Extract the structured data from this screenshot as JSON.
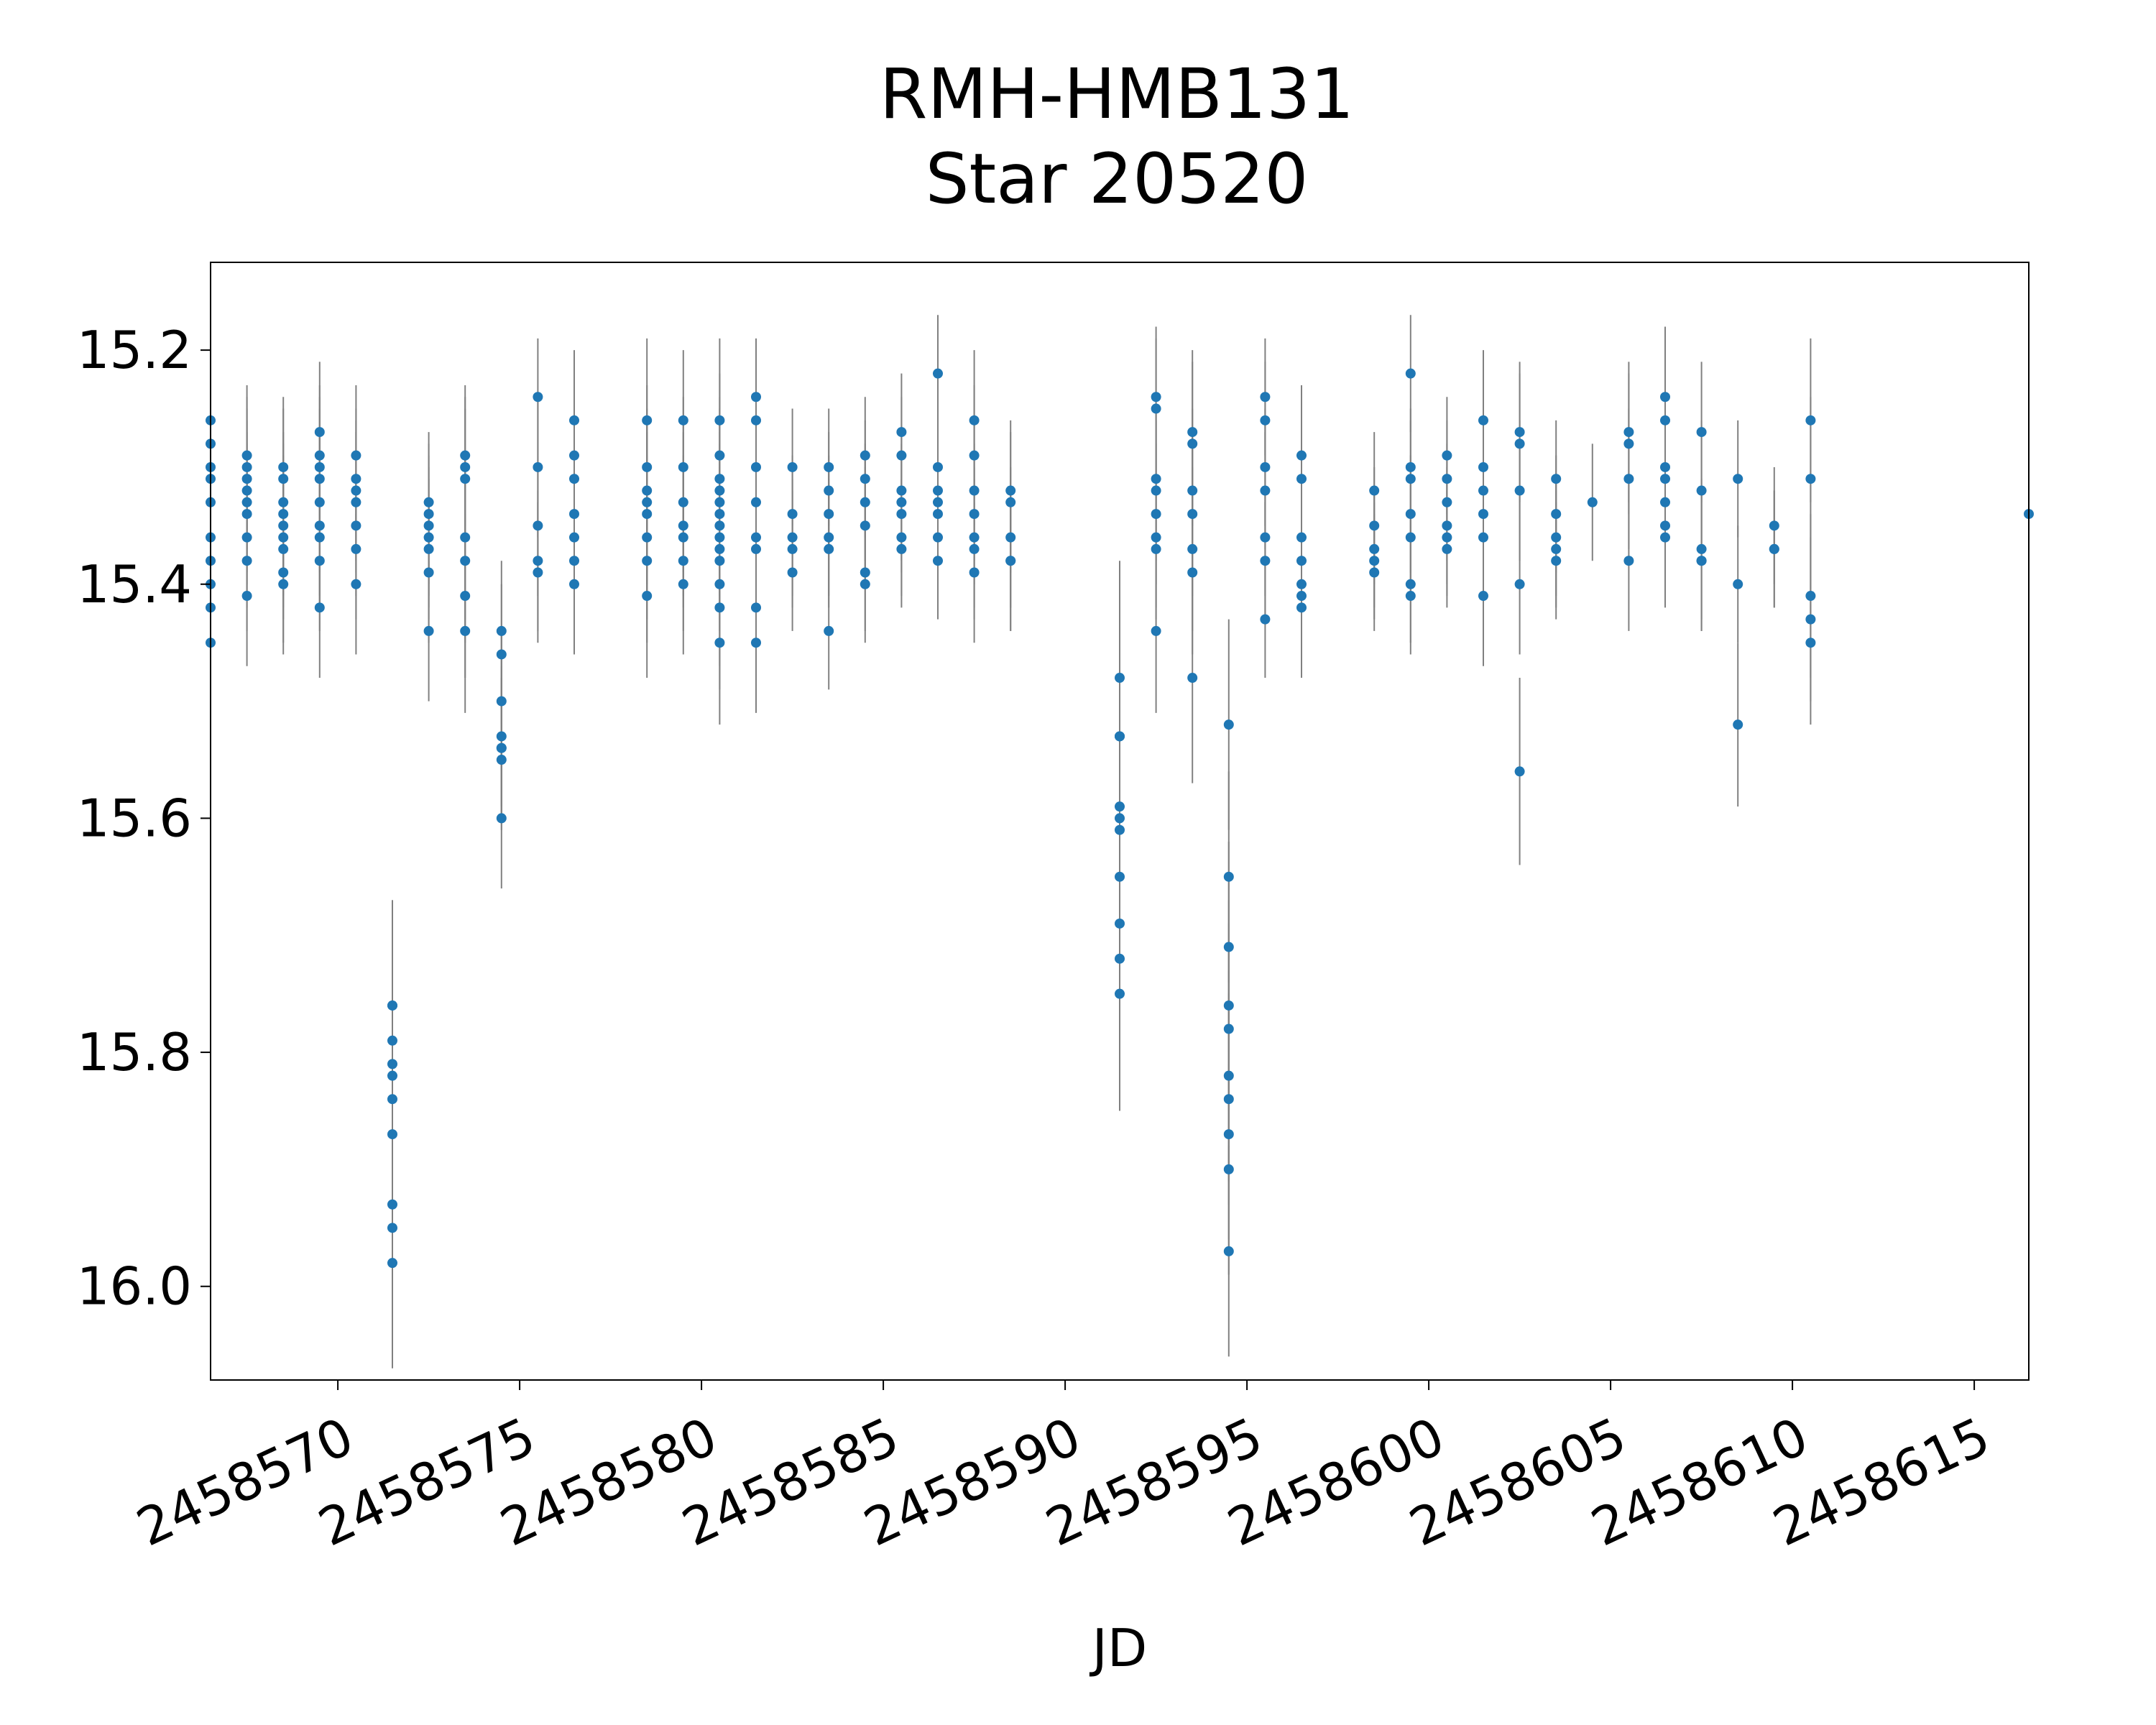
{
  "chart_data": {
    "type": "scatter",
    "title_lines": [
      "RMH-HMB131",
      "Star 20520"
    ],
    "xlabel": "JD",
    "ylabel": "",
    "xlim": [
      2458566.5,
      2458616.5
    ],
    "ylim": [
      16.08,
      15.125
    ],
    "y_inverted": true,
    "x_ticks": [
      2458570,
      2458575,
      2458580,
      2458585,
      2458590,
      2458595,
      2458600,
      2458605,
      2458610,
      2458615
    ],
    "x_tick_labels": [
      "2458570",
      "2458575",
      "2458580",
      "2458585",
      "2458590",
      "2458595",
      "2458600",
      "2458605",
      "2458610",
      "2458615"
    ],
    "y_ticks": [
      15.2,
      15.4,
      15.6,
      15.8,
      16.0
    ],
    "y_tick_labels": [
      "15.2",
      "15.4",
      "15.6",
      "15.8",
      "16.0"
    ],
    "grid": false,
    "legend": "none",
    "colors": {
      "point": "#1f77b4",
      "errorbar": "#808080"
    },
    "series": [
      {
        "x": [
          2458566.5,
          2458566.5,
          2458566.5,
          2458566.5,
          2458566.5,
          2458566.5,
          2458566.5,
          2458566.5,
          2458566.5,
          2458566.5,
          2458567.5,
          2458567.5,
          2458567.5,
          2458567.5,
          2458567.5,
          2458567.5,
          2458567.5,
          2458567.5,
          2458567.5,
          2458568.5,
          2458568.5,
          2458568.5,
          2458568.5,
          2458568.5,
          2458568.5,
          2458568.5,
          2458568.5,
          2458568.5,
          2458569.5,
          2458569.5,
          2458569.5,
          2458569.5,
          2458569.5,
          2458569.5,
          2458569.5,
          2458569.5,
          2458569.5,
          2458570.5,
          2458570.5,
          2458570.5,
          2458570.5,
          2458570.5,
          2458570.5,
          2458570.5,
          2458571.5,
          2458571.5,
          2458571.5,
          2458571.5,
          2458571.5,
          2458571.5,
          2458571.5,
          2458571.5,
          2458571.5,
          2458571.5,
          2458572.5,
          2458572.5,
          2458572.5,
          2458572.5,
          2458572.5,
          2458572.5,
          2458572.5,
          2458573.5,
          2458573.5,
          2458573.5,
          2458573.5,
          2458573.5,
          2458573.5,
          2458573.5,
          2458574.5,
          2458574.5,
          2458574.5,
          2458574.5,
          2458574.5,
          2458574.5,
          2458574.5,
          2458574.5,
          2458575.5,
          2458575.5,
          2458575.5,
          2458575.5,
          2458575.5,
          2458576.5,
          2458576.5,
          2458576.5,
          2458576.5,
          2458576.5,
          2458576.5,
          2458576.5,
          2458578.5,
          2458578.5,
          2458578.5,
          2458578.5,
          2458578.5,
          2458578.5,
          2458578.5,
          2458578.5,
          2458579.5,
          2458579.5,
          2458579.5,
          2458579.5,
          2458579.5,
          2458579.5,
          2458579.5,
          2458580.5,
          2458580.5,
          2458580.5,
          2458580.5,
          2458580.5,
          2458580.5,
          2458580.5,
          2458580.5,
          2458580.5,
          2458580.5,
          2458580.5,
          2458580.5,
          2458580.5,
          2458581.5,
          2458581.5,
          2458581.5,
          2458581.5,
          2458581.5,
          2458581.5,
          2458581.5,
          2458581.5,
          2458582.5,
          2458582.5,
          2458582.5,
          2458582.5,
          2458582.5,
          2458583.5,
          2458583.5,
          2458583.5,
          2458583.5,
          2458583.5,
          2458583.5,
          2458584.5,
          2458584.5,
          2458584.5,
          2458584.5,
          2458584.5,
          2458584.5,
          2458585.5,
          2458585.5,
          2458585.5,
          2458585.5,
          2458585.5,
          2458585.5,
          2458585.5,
          2458586.5,
          2458586.5,
          2458586.5,
          2458586.5,
          2458586.5,
          2458586.5,
          2458586.5,
          2458587.5,
          2458587.5,
          2458587.5,
          2458587.5,
          2458587.5,
          2458587.5,
          2458587.5,
          2458588.5,
          2458588.5,
          2458588.5,
          2458588.5,
          2458588.5,
          2458591.5,
          2458591.5,
          2458591.5,
          2458591.5,
          2458591.5,
          2458591.5,
          2458591.5,
          2458591.5,
          2458591.5,
          2458591.5,
          2458592.5,
          2458592.5,
          2458592.5,
          2458592.5,
          2458592.5,
          2458592.5,
          2458592.5,
          2458592.5,
          2458593.5,
          2458593.5,
          2458593.5,
          2458593.5,
          2458593.5,
          2458593.5,
          2458593.5,
          2458594.5,
          2458594.5,
          2458594.5,
          2458594.5,
          2458594.5,
          2458594.5,
          2458594.5,
          2458594.5,
          2458594.5,
          2458594.5,
          2458595.5,
          2458595.5,
          2458595.5,
          2458595.5,
          2458595.5,
          2458595.5,
          2458595.5,
          2458596.5,
          2458596.5,
          2458596.5,
          2458596.5,
          2458596.5,
          2458596.5,
          2458596.5,
          2458598.5,
          2458598.5,
          2458598.5,
          2458598.5,
          2458598.5,
          2458599.5,
          2458599.5,
          2458599.5,
          2458599.5,
          2458599.5,
          2458599.5,
          2458599.5,
          2458600.5,
          2458600.5,
          2458600.5,
          2458600.5,
          2458600.5,
          2458600.5,
          2458601.5,
          2458601.5,
          2458601.5,
          2458601.5,
          2458601.5,
          2458601.5,
          2458602.5,
          2458602.5,
          2458602.5,
          2458602.5,
          2458602.5,
          2458603.5,
          2458603.5,
          2458603.5,
          2458603.5,
          2458603.5,
          2458604.5,
          2458605.5,
          2458605.5,
          2458605.5,
          2458605.5,
          2458606.5,
          2458606.5,
          2458606.5,
          2458606.5,
          2458606.5,
          2458606.5,
          2458606.5,
          2458607.5,
          2458607.5,
          2458607.5,
          2458607.5,
          2458607.5,
          2458608.5,
          2458608.5,
          2458608.5,
          2458609.5,
          2458609.5,
          2458609.5,
          2458610.5,
          2458610.5,
          2458610.5,
          2458610.5,
          2458610.5,
          2458616.5
        ],
        "y": [
          15.26,
          15.28,
          15.31,
          15.33,
          15.36,
          15.38,
          15.4,
          15.42,
          15.45,
          15.3,
          15.29,
          15.31,
          15.33,
          15.34,
          15.36,
          15.38,
          15.41,
          15.3,
          15.32,
          15.3,
          15.31,
          15.34,
          15.35,
          15.37,
          15.39,
          15.4,
          15.36,
          15.33,
          15.27,
          15.29,
          15.31,
          15.33,
          15.36,
          15.38,
          15.42,
          15.3,
          15.35,
          15.29,
          15.31,
          15.33,
          15.35,
          15.37,
          15.4,
          15.32,
          15.76,
          15.79,
          15.82,
          15.84,
          15.87,
          15.93,
          15.95,
          15.98,
          15.76,
          15.81,
          15.33,
          15.35,
          15.37,
          15.39,
          15.44,
          15.36,
          15.34,
          15.29,
          15.31,
          15.36,
          15.38,
          15.41,
          15.44,
          15.3,
          15.44,
          15.46,
          15.5,
          15.53,
          15.54,
          15.55,
          15.6,
          15.54,
          15.24,
          15.3,
          15.35,
          15.38,
          15.39,
          15.26,
          15.29,
          15.31,
          15.34,
          15.36,
          15.38,
          15.4,
          15.26,
          15.3,
          15.32,
          15.34,
          15.36,
          15.38,
          15.41,
          15.33,
          15.26,
          15.3,
          15.33,
          15.36,
          15.38,
          15.4,
          15.35,
          15.26,
          15.29,
          15.31,
          15.33,
          15.34,
          15.36,
          15.37,
          15.38,
          15.4,
          15.42,
          15.45,
          15.35,
          15.32,
          15.24,
          15.26,
          15.3,
          15.33,
          15.36,
          15.37,
          15.42,
          15.45,
          15.3,
          15.34,
          15.36,
          15.37,
          15.39,
          15.3,
          15.32,
          15.34,
          15.36,
          15.37,
          15.44,
          15.29,
          15.31,
          15.33,
          15.35,
          15.4,
          15.39,
          15.27,
          15.29,
          15.32,
          15.33,
          15.34,
          15.36,
          15.37,
          15.22,
          15.3,
          15.32,
          15.33,
          15.34,
          15.36,
          15.38,
          15.26,
          15.29,
          15.32,
          15.34,
          15.36,
          15.37,
          15.39,
          15.32,
          15.33,
          15.36,
          15.38,
          15.38,
          15.48,
          15.53,
          15.53,
          15.59,
          15.6,
          15.61,
          15.65,
          15.69,
          15.72,
          15.75,
          15.24,
          15.25,
          15.31,
          15.32,
          15.34,
          15.36,
          15.37,
          15.44,
          15.27,
          15.28,
          15.32,
          15.34,
          15.37,
          15.39,
          15.48,
          15.52,
          15.65,
          15.71,
          15.76,
          15.78,
          15.82,
          15.84,
          15.87,
          15.9,
          15.97,
          15.24,
          15.26,
          15.3,
          15.32,
          15.36,
          15.38,
          15.43,
          15.29,
          15.31,
          15.36,
          15.38,
          15.4,
          15.41,
          15.42,
          15.32,
          15.35,
          15.37,
          15.38,
          15.39,
          15.22,
          15.3,
          15.31,
          15.34,
          15.36,
          15.4,
          15.41,
          15.29,
          15.31,
          15.33,
          15.35,
          15.36,
          15.37,
          15.26,
          15.3,
          15.32,
          15.34,
          15.36,
          15.41,
          15.27,
          15.28,
          15.32,
          15.4,
          15.56,
          15.31,
          15.34,
          15.36,
          15.37,
          15.38,
          15.33,
          15.27,
          15.28,
          15.31,
          15.38,
          15.24,
          15.26,
          15.3,
          15.31,
          15.33,
          15.35,
          15.36,
          15.27,
          15.32,
          15.37,
          15.38,
          15.38,
          15.31,
          15.4,
          15.52,
          15.35,
          15.37,
          15.37,
          15.26,
          15.31,
          15.41,
          15.43,
          15.45,
          15.34
        ],
        "yerr": [
          0.07,
          0.07,
          0.06,
          0.07,
          0.07,
          0.06,
          0.07,
          0.07,
          0.07,
          0.07,
          0.06,
          0.06,
          0.06,
          0.06,
          0.06,
          0.06,
          0.06,
          0.06,
          0.06,
          0.06,
          0.06,
          0.06,
          0.06,
          0.06,
          0.06,
          0.06,
          0.06,
          0.06,
          0.06,
          0.06,
          0.06,
          0.06,
          0.06,
          0.06,
          0.06,
          0.06,
          0.06,
          0.06,
          0.06,
          0.06,
          0.06,
          0.06,
          0.06,
          0.06,
          0.09,
          0.09,
          0.09,
          0.09,
          0.09,
          0.09,
          0.09,
          0.09,
          0.09,
          0.09,
          0.06,
          0.06,
          0.06,
          0.06,
          0.06,
          0.06,
          0.06,
          0.06,
          0.06,
          0.07,
          0.07,
          0.07,
          0.07,
          0.06,
          0.06,
          0.06,
          0.06,
          0.06,
          0.06,
          0.06,
          0.06,
          0.06,
          0.05,
          0.06,
          0.06,
          0.06,
          0.06,
          0.06,
          0.06,
          0.06,
          0.06,
          0.06,
          0.06,
          0.06,
          0.07,
          0.07,
          0.07,
          0.07,
          0.07,
          0.07,
          0.07,
          0.07,
          0.06,
          0.06,
          0.06,
          0.06,
          0.06,
          0.06,
          0.06,
          0.07,
          0.07,
          0.07,
          0.07,
          0.07,
          0.07,
          0.07,
          0.07,
          0.07,
          0.07,
          0.07,
          0.07,
          0.07,
          0.05,
          0.06,
          0.06,
          0.06,
          0.06,
          0.06,
          0.06,
          0.06,
          0.05,
          0.05,
          0.05,
          0.05,
          0.05,
          0.05,
          0.05,
          0.05,
          0.05,
          0.05,
          0.05,
          0.05,
          0.05,
          0.05,
          0.05,
          0.05,
          0.05,
          0.05,
          0.05,
          0.05,
          0.05,
          0.05,
          0.05,
          0.05,
          0.05,
          0.05,
          0.05,
          0.05,
          0.05,
          0.05,
          0.05,
          0.06,
          0.06,
          0.06,
          0.06,
          0.06,
          0.06,
          0.06,
          0.06,
          0.06,
          0.06,
          0.06,
          0.06,
          0.1,
          0.1,
          0.1,
          0.1,
          0.1,
          0.1,
          0.1,
          0.1,
          0.1,
          0.1,
          0.06,
          0.06,
          0.06,
          0.06,
          0.06,
          0.06,
          0.06,
          0.07,
          0.07,
          0.07,
          0.07,
          0.07,
          0.07,
          0.07,
          0.09,
          0.09,
          0.09,
          0.09,
          0.09,
          0.09,
          0.09,
          0.09,
          0.09,
          0.09,
          0.09,
          0.05,
          0.05,
          0.05,
          0.05,
          0.05,
          0.05,
          0.05,
          0.06,
          0.06,
          0.06,
          0.06,
          0.06,
          0.06,
          0.06,
          0.05,
          0.05,
          0.05,
          0.05,
          0.05,
          0.05,
          0.05,
          0.05,
          0.05,
          0.05,
          0.05,
          0.05,
          0.05,
          0.05,
          0.05,
          0.05,
          0.05,
          0.05,
          0.06,
          0.06,
          0.06,
          0.06,
          0.06,
          0.06,
          0.06,
          0.06,
          0.06,
          0.06,
          0.08,
          0.05,
          0.05,
          0.05,
          0.05,
          0.05,
          0.05,
          0.06,
          0.06,
          0.06,
          0.06,
          0.06,
          0.06,
          0.06,
          0.06,
          0.06,
          0.06,
          0.06,
          0.06,
          0.06,
          0.06,
          0.06,
          0.06,
          0.05,
          0.05,
          0.07,
          0.05,
          0.05,
          0.05,
          0.07,
          0.07,
          0.07,
          0.07,
          0.07,
          0.05
        ]
      }
    ]
  }
}
